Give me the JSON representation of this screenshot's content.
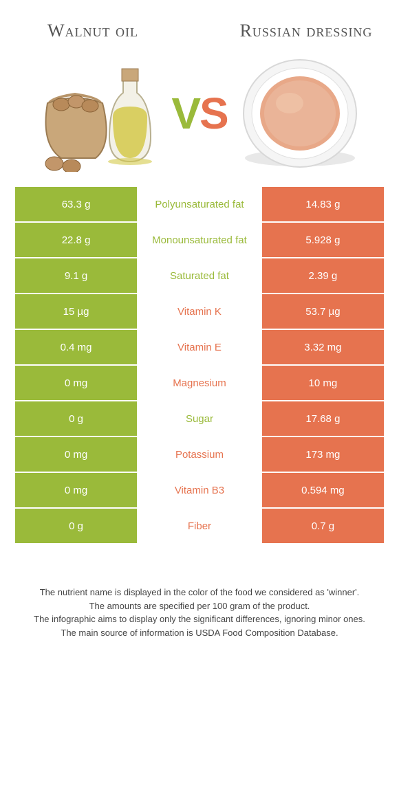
{
  "colors": {
    "left": "#9aba3a",
    "right": "#e6734f",
    "row_border": "#ffffff",
    "text_white": "#ffffff",
    "bg": "#ffffff"
  },
  "header": {
    "left_title": "Walnut oil",
    "right_title": "Russian dressing",
    "vs_v": "V",
    "vs_s": "S"
  },
  "rows": [
    {
      "label": "Polyunsaturated fat",
      "left": "63.3 g",
      "right": "14.83 g",
      "winner": "left"
    },
    {
      "label": "Monounsaturated fat",
      "left": "22.8 g",
      "right": "5.928 g",
      "winner": "left"
    },
    {
      "label": "Saturated fat",
      "left": "9.1 g",
      "right": "2.39 g",
      "winner": "left"
    },
    {
      "label": "Vitamin K",
      "left": "15 µg",
      "right": "53.7 µg",
      "winner": "right"
    },
    {
      "label": "Vitamin E",
      "left": "0.4 mg",
      "right": "3.32 mg",
      "winner": "right"
    },
    {
      "label": "Magnesium",
      "left": "0 mg",
      "right": "10 mg",
      "winner": "right"
    },
    {
      "label": "Sugar",
      "left": "0 g",
      "right": "17.68 g",
      "winner": "left"
    },
    {
      "label": "Potassium",
      "left": "0 mg",
      "right": "173 mg",
      "winner": "right"
    },
    {
      "label": "Vitamin B3",
      "left": "0 mg",
      "right": "0.594 mg",
      "winner": "right"
    },
    {
      "label": "Fiber",
      "left": "0 g",
      "right": "0.7 g",
      "winner": "right"
    }
  ],
  "footer": {
    "line1": "The nutrient name is displayed in the color of the food we considered as 'winner'.",
    "line2": "The amounts are specified per 100 gram of the product.",
    "line3": "The infographic aims to display only the significant differences, ignoring minor ones.",
    "line4": "The main source of information is USDA Food Composition Database."
  }
}
